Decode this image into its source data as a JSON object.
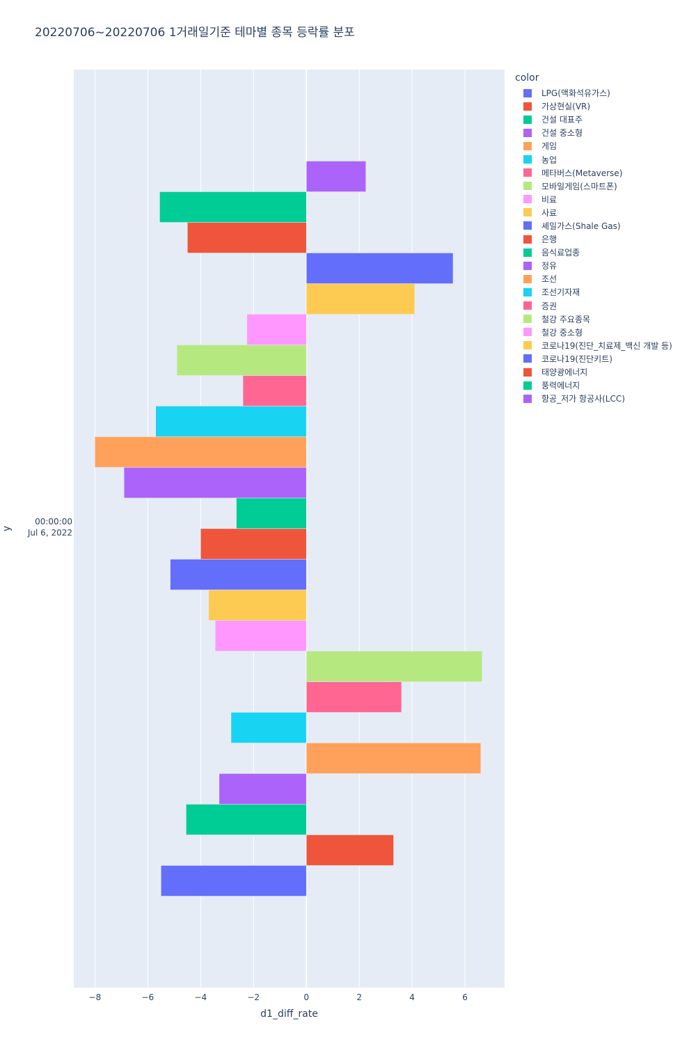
{
  "chart_data": {
    "type": "bar",
    "orientation": "horizontal",
    "title": "20220706~20220706 1거래일기준 테마별 종목 등락률 분포",
    "xlabel": "d1_diff_rate",
    "ylabel": "y",
    "y_category": [
      "00:00:00",
      "Jul 6, 2022"
    ],
    "xlim": [
      -8.8,
      7.5
    ],
    "xticks": [
      -8,
      -6,
      -4,
      -2,
      0,
      2,
      4,
      6
    ],
    "xtick_labels": [
      "−8",
      "−6",
      "−4",
      "−2",
      "0",
      "2",
      "4",
      "6"
    ],
    "legend_title": "color",
    "series": [
      {
        "name": "LPG(액화석유가스)",
        "color": "#636efa",
        "value": -5.5
      },
      {
        "name": "가상현실(VR)",
        "color": "#EF553B",
        "value": 3.3
      },
      {
        "name": "건설 대표주",
        "color": "#00cc96",
        "value": -4.55
      },
      {
        "name": "건설 중소형",
        "color": "#ab63fa",
        "value": -3.3
      },
      {
        "name": "게임",
        "color": "#FFA15A",
        "value": 6.6
      },
      {
        "name": "농업",
        "color": "#19d3f3",
        "value": -2.85
      },
      {
        "name": "메타버스(Metaverse)",
        "color": "#FF6692",
        "value": 3.6
      },
      {
        "name": "모바일게임(스마트폰)",
        "color": "#B6E880",
        "value": 6.65
      },
      {
        "name": "비료",
        "color": "#FF97FF",
        "value": -3.45
      },
      {
        "name": "사료",
        "color": "#FECB52",
        "value": -3.7
      },
      {
        "name": "셰일가스(Shale Gas)",
        "color": "#636efa",
        "value": -5.15
      },
      {
        "name": "은행",
        "color": "#EF553B",
        "value": -4.0
      },
      {
        "name": "음식료업종",
        "color": "#00cc96",
        "value": -2.65
      },
      {
        "name": "정유",
        "color": "#ab63fa",
        "value": -6.9
      },
      {
        "name": "조선",
        "color": "#FFA15A",
        "value": -8.0
      },
      {
        "name": "조선기자재",
        "color": "#19d3f3",
        "value": -5.7
      },
      {
        "name": "증권",
        "color": "#FF6692",
        "value": -2.4
      },
      {
        "name": "철강 주요종목",
        "color": "#B6E880",
        "value": -4.9
      },
      {
        "name": "철강 중소형",
        "color": "#FF97FF",
        "value": -2.25
      },
      {
        "name": "코로나19(진단_치료제_백신 개발 등)",
        "color": "#FECB52",
        "value": 4.1
      },
      {
        "name": "코로나19(진단키트)",
        "color": "#636efa",
        "value": 5.55
      },
      {
        "name": "태양광에너지",
        "color": "#EF553B",
        "value": -4.5
      },
      {
        "name": "풍력에너지",
        "color": "#00cc96",
        "value": -5.55
      },
      {
        "name": "항공_저가 항공사(LCC)",
        "color": "#ab63fa",
        "value": 2.25
      }
    ]
  }
}
